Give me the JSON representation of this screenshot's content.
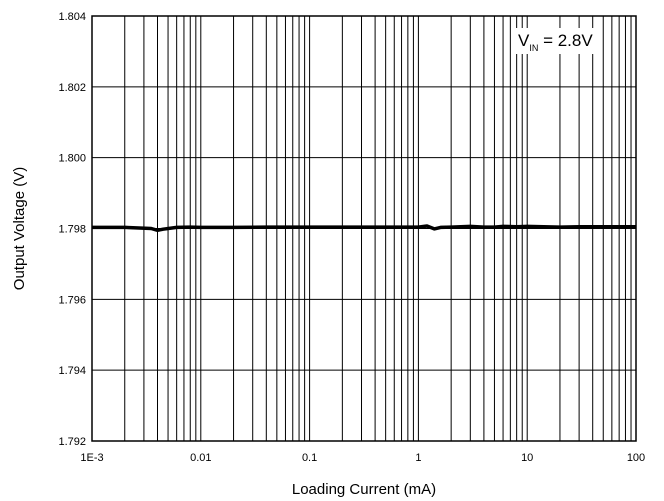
{
  "chart_data": {
    "type": "line",
    "title": "",
    "xlabel": "Loading Current (mA)",
    "ylabel": "Output Voltage (V)",
    "xscale": "log",
    "xlim": [
      0.001,
      100
    ],
    "ylim": [
      1.792,
      1.804
    ],
    "grid": true,
    "x_tick_values": [
      0.001,
      0.01,
      0.1,
      1,
      10,
      100
    ],
    "x_tick_labels": [
      "1E-3",
      "0.01",
      "0.1",
      "1",
      "10",
      "100"
    ],
    "y_tick_values": [
      1.792,
      1.794,
      1.796,
      1.798,
      1.8,
      1.802,
      1.804
    ],
    "y_tick_labels": [
      "1.792",
      "1.794",
      "1.796",
      "1.798",
      "1.800",
      "1.802",
      "1.804"
    ],
    "annotation": {
      "base": "V",
      "subscript": "IN",
      "text": " = 2.8V"
    },
    "series": [
      {
        "color": "#000000",
        "x": [
          0.001,
          0.002,
          0.0035,
          0.004,
          0.0045,
          0.006,
          0.008,
          0.01,
          0.02,
          0.04,
          0.07,
          0.1,
          0.2,
          0.5,
          1,
          1.2,
          1.4,
          1.6,
          2,
          3,
          4,
          5,
          6,
          8,
          10,
          20,
          30,
          40,
          60,
          100
        ],
        "y": [
          1.79803,
          1.79803,
          1.798,
          1.79795,
          1.79798,
          1.79803,
          1.79804,
          1.79803,
          1.79803,
          1.79804,
          1.79804,
          1.79804,
          1.79804,
          1.79804,
          1.79804,
          1.79807,
          1.79799,
          1.79803,
          1.79804,
          1.79806,
          1.79804,
          1.79804,
          1.79806,
          1.79805,
          1.79806,
          1.79804,
          1.79805,
          1.79805,
          1.79805,
          1.79805
        ]
      }
    ]
  }
}
